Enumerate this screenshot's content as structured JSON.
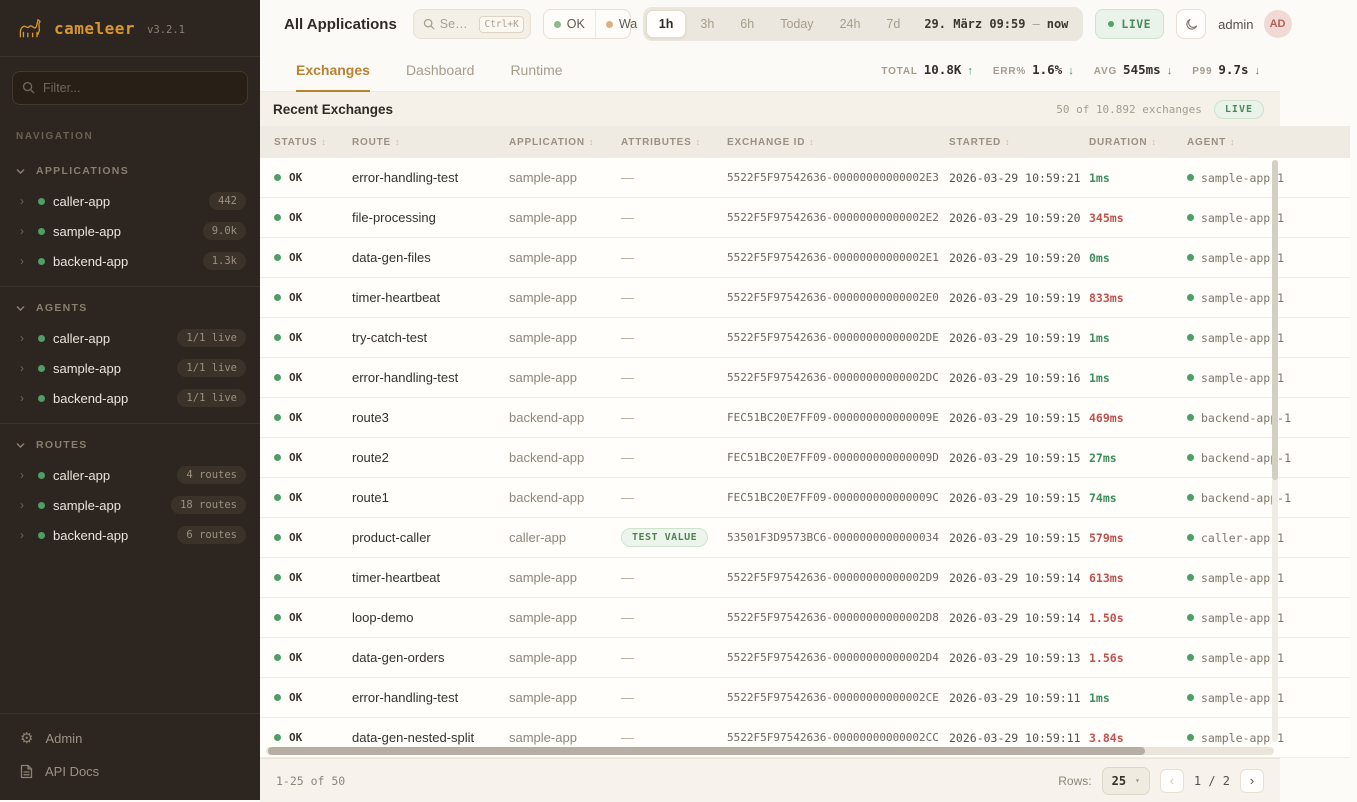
{
  "colors": {
    "brand": "#d9962f",
    "green": "#3f8f5c",
    "red": "#c0524e",
    "ok_dot": "#8cb98a",
    "warn_dot": "#ddb083",
    "live_green": "#4a8a5c"
  },
  "glyphs": {
    "sort": "↕",
    "chevron_right": "›",
    "caret_down": "▾",
    "prev": "‹",
    "next": "›",
    "up_arrow": "↑",
    "down_arrow": "↓",
    "gear": "⚙"
  },
  "sidebar": {
    "logo": {
      "brand": "cameleer",
      "version": "v3.2.1"
    },
    "filter_placeholder": "Filter...",
    "nav_label": "NAVIGATION",
    "sections": [
      {
        "label": "APPLICATIONS",
        "items": [
          {
            "name": "caller-app",
            "badge": "442"
          },
          {
            "name": "sample-app",
            "badge": "9.0k"
          },
          {
            "name": "backend-app",
            "badge": "1.3k"
          }
        ]
      },
      {
        "label": "AGENTS",
        "items": [
          {
            "name": "caller-app",
            "badge": "1/1 live"
          },
          {
            "name": "sample-app",
            "badge": "1/1 live"
          },
          {
            "name": "backend-app",
            "badge": "1/1 live"
          }
        ]
      },
      {
        "label": "ROUTES",
        "items": [
          {
            "name": "caller-app",
            "badge": "4 routes"
          },
          {
            "name": "sample-app",
            "badge": "18 routes"
          },
          {
            "name": "backend-app",
            "badge": "6 routes"
          }
        ]
      }
    ],
    "footer_items": [
      {
        "label": "Admin"
      },
      {
        "label": "API Docs"
      }
    ]
  },
  "header": {
    "title": "All Applications",
    "search": {
      "placeholder": "Se…",
      "shortcut": "Ctrl+K"
    },
    "status_filters": [
      {
        "label": "OK",
        "dot_color": "#8cb98a"
      },
      {
        "label": "Wa",
        "dot_color": "#ddb083"
      }
    ],
    "time_ranges": [
      "1h",
      "3h",
      "6h",
      "Today",
      "24h",
      "7d"
    ],
    "active_range": "1h",
    "date_range": {
      "start": "29. März 09:59",
      "separator": "—",
      "end": "now"
    },
    "live_label": "LIVE",
    "user": {
      "name": "admin",
      "initials": "AD"
    }
  },
  "tabs": [
    {
      "label": "Exchanges",
      "active": true
    },
    {
      "label": "Dashboard",
      "active": false
    },
    {
      "label": "Runtime",
      "active": false
    }
  ],
  "stats": [
    {
      "label": "TOTAL",
      "value": "10.8K",
      "trend": "up"
    },
    {
      "label": "ERR%",
      "value": "1.6%",
      "trend": "down"
    },
    {
      "label": "AVG",
      "value": "545ms",
      "trend": "down"
    },
    {
      "label": "P99",
      "value": "9.7s",
      "trend": "down"
    }
  ],
  "table": {
    "title": "Recent Exchanges",
    "summary": "50 of 10.892 exchanges",
    "live_label": "LIVE",
    "columns": [
      "STATUS",
      "ROUTE",
      "APPLICATION",
      "ATTRIBUTES",
      "EXCHANGE ID",
      "STARTED",
      "DURATION",
      "AGENT"
    ],
    "rows": [
      {
        "status": "OK",
        "route": "error-handling-test",
        "application": "sample-app",
        "attributes": "—",
        "attr_badge": false,
        "exchange_id": "5522F5F97542636-00000000000002E3",
        "started": "2026-03-29 10:59:21",
        "duration": "1ms",
        "tone": "green",
        "agent": "sample-app-1"
      },
      {
        "status": "OK",
        "route": "file-processing",
        "application": "sample-app",
        "attributes": "—",
        "attr_badge": false,
        "exchange_id": "5522F5F97542636-00000000000002E2",
        "started": "2026-03-29 10:59:20",
        "duration": "345ms",
        "tone": "red",
        "agent": "sample-app-1"
      },
      {
        "status": "OK",
        "route": "data-gen-files",
        "application": "sample-app",
        "attributes": "—",
        "attr_badge": false,
        "exchange_id": "5522F5F97542636-00000000000002E1",
        "started": "2026-03-29 10:59:20",
        "duration": "0ms",
        "tone": "green",
        "agent": "sample-app-1"
      },
      {
        "status": "OK",
        "route": "timer-heartbeat",
        "application": "sample-app",
        "attributes": "—",
        "attr_badge": false,
        "exchange_id": "5522F5F97542636-00000000000002E0",
        "started": "2026-03-29 10:59:19",
        "duration": "833ms",
        "tone": "red",
        "agent": "sample-app-1"
      },
      {
        "status": "OK",
        "route": "try-catch-test",
        "application": "sample-app",
        "attributes": "—",
        "attr_badge": false,
        "exchange_id": "5522F5F97542636-00000000000002DE",
        "started": "2026-03-29 10:59:19",
        "duration": "1ms",
        "tone": "green",
        "agent": "sample-app-1"
      },
      {
        "status": "OK",
        "route": "error-handling-test",
        "application": "sample-app",
        "attributes": "—",
        "attr_badge": false,
        "exchange_id": "5522F5F97542636-00000000000002DC",
        "started": "2026-03-29 10:59:16",
        "duration": "1ms",
        "tone": "green",
        "agent": "sample-app-1"
      },
      {
        "status": "OK",
        "route": "route3",
        "application": "backend-app",
        "attributes": "—",
        "attr_badge": false,
        "exchange_id": "FEC51BC20E7FF09-000000000000009E",
        "started": "2026-03-29 10:59:15",
        "duration": "469ms",
        "tone": "red",
        "agent": "backend-app-1"
      },
      {
        "status": "OK",
        "route": "route2",
        "application": "backend-app",
        "attributes": "—",
        "attr_badge": false,
        "exchange_id": "FEC51BC20E7FF09-000000000000009D",
        "started": "2026-03-29 10:59:15",
        "duration": "27ms",
        "tone": "green",
        "agent": "backend-app-1"
      },
      {
        "status": "OK",
        "route": "route1",
        "application": "backend-app",
        "attributes": "—",
        "attr_badge": false,
        "exchange_id": "FEC51BC20E7FF09-000000000000009C",
        "started": "2026-03-29 10:59:15",
        "duration": "74ms",
        "tone": "green",
        "agent": "backend-app-1"
      },
      {
        "status": "OK",
        "route": "product-caller",
        "application": "caller-app",
        "attributes": "TEST VALUE",
        "attr_badge": true,
        "exchange_id": "53501F3D9573BC6-0000000000000034",
        "started": "2026-03-29 10:59:15",
        "duration": "579ms",
        "tone": "red",
        "agent": "caller-app-1"
      },
      {
        "status": "OK",
        "route": "timer-heartbeat",
        "application": "sample-app",
        "attributes": "—",
        "attr_badge": false,
        "exchange_id": "5522F5F97542636-00000000000002D9",
        "started": "2026-03-29 10:59:14",
        "duration": "613ms",
        "tone": "red",
        "agent": "sample-app-1"
      },
      {
        "status": "OK",
        "route": "loop-demo",
        "application": "sample-app",
        "attributes": "—",
        "attr_badge": false,
        "exchange_id": "5522F5F97542636-00000000000002D8",
        "started": "2026-03-29 10:59:14",
        "duration": "1.50s",
        "tone": "red",
        "agent": "sample-app-1"
      },
      {
        "status": "OK",
        "route": "data-gen-orders",
        "application": "sample-app",
        "attributes": "—",
        "attr_badge": false,
        "exchange_id": "5522F5F97542636-00000000000002D4",
        "started": "2026-03-29 10:59:13",
        "duration": "1.56s",
        "tone": "red",
        "agent": "sample-app-1"
      },
      {
        "status": "OK",
        "route": "error-handling-test",
        "application": "sample-app",
        "attributes": "—",
        "attr_badge": false,
        "exchange_id": "5522F5F97542636-00000000000002CE",
        "started": "2026-03-29 10:59:11",
        "duration": "1ms",
        "tone": "green",
        "agent": "sample-app-1"
      },
      {
        "status": "OK",
        "route": "data-gen-nested-split",
        "application": "sample-app",
        "attributes": "—",
        "attr_badge": false,
        "exchange_id": "5522F5F97542636-00000000000002CC",
        "started": "2026-03-29 10:59:11",
        "duration": "3.84s",
        "tone": "red",
        "agent": "sample-app-1"
      }
    ]
  },
  "footer": {
    "range": "1-25 of 50",
    "rows_label": "Rows:",
    "rows_value": "25",
    "page": "1 / 2"
  }
}
